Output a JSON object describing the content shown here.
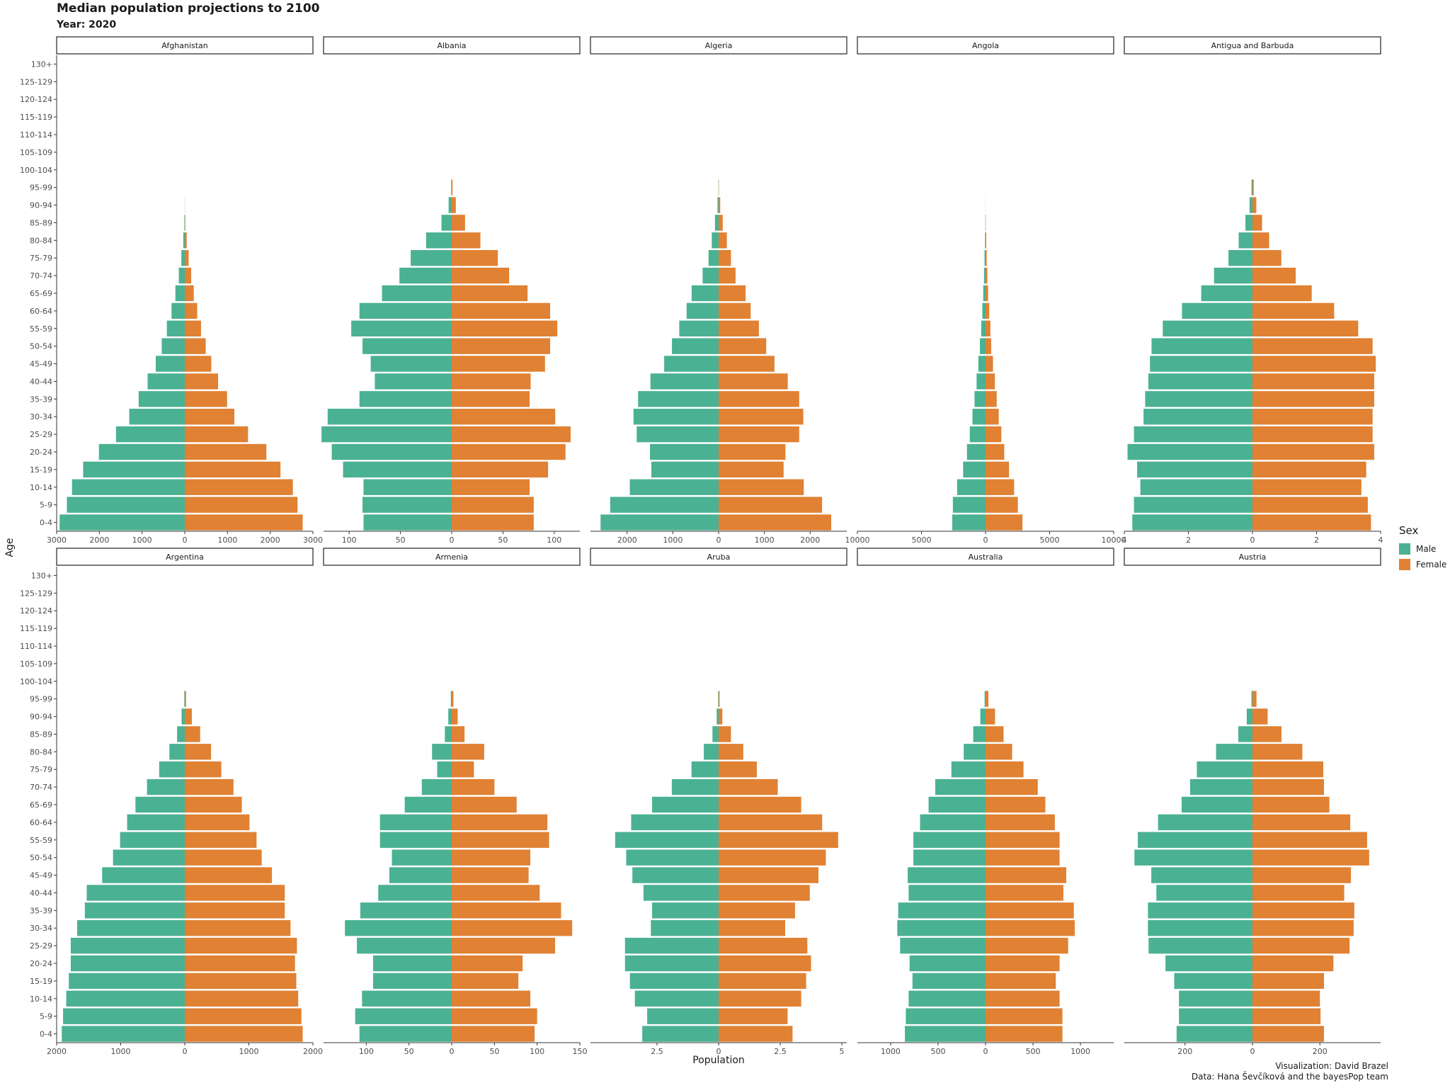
{
  "title": "Median population projections to 2100",
  "subtitle": "Year: 2020",
  "caption": {
    "line1": "Visualization: David Brazel",
    "line2": "Data: Hana Ševčíková and the bayesPop team"
  },
  "legend": {
    "title": "Sex",
    "items": [
      {
        "label": "Male",
        "color": "#4bb193"
      },
      {
        "label": "Female",
        "color": "#e08133"
      }
    ]
  },
  "chart_data": {
    "type": "bar",
    "orientation": "horizontal",
    "style": "population pyramid, facets by country, shared y axis",
    "xlabel": "Population",
    "ylabel": "Age",
    "grid": false,
    "legend_position": "right",
    "age_groups": [
      "0-4",
      "5-9",
      "10-14",
      "15-19",
      "20-24",
      "25-29",
      "30-34",
      "35-39",
      "40-44",
      "45-49",
      "50-54",
      "55-59",
      "60-64",
      "65-69",
      "70-74",
      "75-79",
      "80-84",
      "85-89",
      "90-94",
      "95-99",
      "100-104",
      "105-109",
      "110-114",
      "115-119",
      "120-124",
      "125-129",
      "130+"
    ],
    "panels": [
      {
        "country": "Afghanistan",
        "xlim": [
          -3000,
          3000
        ],
        "ticks": [
          -3000,
          -2000,
          -1000,
          0,
          1000,
          2000,
          3000
        ],
        "tick_labels": [
          "3000",
          "2000",
          "1000",
          "0",
          "1000",
          "2000",
          "3000"
        ],
        "male": [
          2930,
          2760,
          2640,
          2380,
          2010,
          1610,
          1300,
          1080,
          870,
          680,
          540,
          420,
          310,
          220,
          140,
          80,
          35,
          10,
          2,
          0,
          0,
          0,
          0,
          0,
          0,
          0,
          0
        ],
        "female": [
          2760,
          2640,
          2530,
          2240,
          1910,
          1480,
          1160,
          990,
          780,
          620,
          490,
          380,
          290,
          210,
          150,
          90,
          45,
          12,
          2,
          0,
          0,
          0,
          0,
          0,
          0,
          0,
          0
        ]
      },
      {
        "country": "Albania",
        "xlim": [
          -125,
          125
        ],
        "ticks": [
          -100,
          -50,
          0,
          50,
          100
        ],
        "tick_labels": [
          "100",
          "50",
          "0",
          "50",
          "100"
        ],
        "male": [
          86,
          87,
          86,
          106,
          117,
          127,
          121,
          90,
          75,
          79,
          87,
          98,
          90,
          68,
          51,
          40,
          25,
          10,
          3,
          0.5,
          0,
          0,
          0,
          0,
          0,
          0,
          0
        ],
        "female": [
          80,
          80,
          76,
          94,
          111,
          116,
          101,
          76,
          77,
          91,
          96,
          103,
          96,
          74,
          56,
          45,
          28,
          13,
          4,
          0.8,
          0,
          0,
          0,
          0,
          0,
          0,
          0
        ],
        "tick_extra": [
          "100"
        ]
      },
      {
        "country": "Algeria",
        "xlim": [
          -2800,
          2800
        ],
        "ticks": [
          -2000,
          -1000,
          0,
          1000,
          2000
        ],
        "tick_labels": [
          "2000",
          "1000",
          "0",
          "1000",
          "2000"
        ],
        "male": [
          2580,
          2370,
          1940,
          1470,
          1500,
          1790,
          1860,
          1760,
          1490,
          1190,
          1020,
          860,
          700,
          590,
          350,
          220,
          150,
          80,
          25,
          4,
          0,
          0,
          0,
          0,
          0,
          0,
          0
        ],
        "female": [
          2460,
          2260,
          1860,
          1420,
          1460,
          1760,
          1850,
          1760,
          1510,
          1220,
          1040,
          880,
          700,
          590,
          370,
          270,
          180,
          90,
          35,
          6,
          0,
          0,
          0,
          0,
          0,
          0,
          0
        ]
      },
      {
        "country": "Angola",
        "xlim": [
          -10000,
          10000
        ],
        "ticks": [
          -10000,
          -5000,
          0,
          5000,
          10000
        ],
        "tick_labels": [
          "10000",
          "5000",
          "0",
          "5000",
          "10000"
        ],
        "male": [
          2600,
          2550,
          2220,
          1750,
          1450,
          1230,
          1020,
          860,
          700,
          560,
          440,
          340,
          250,
          180,
          120,
          80,
          40,
          15,
          3,
          0.5,
          0,
          0,
          0,
          0,
          0,
          0,
          0
        ],
        "female": [
          2880,
          2520,
          2230,
          1830,
          1460,
          1230,
          1030,
          870,
          730,
          580,
          440,
          380,
          290,
          200,
          140,
          90,
          55,
          20,
          5,
          1,
          0,
          0,
          0,
          0,
          0,
          0,
          0
        ]
      },
      {
        "country": "Antigua and Barbuda",
        "xlim": [
          -4,
          4
        ],
        "ticks": [
          -4,
          -2,
          0,
          2,
          4
        ],
        "tick_labels": [
          "4",
          "2",
          "0",
          "2",
          "4"
        ],
        "male": [
          3.75,
          3.7,
          3.5,
          3.6,
          3.9,
          3.7,
          3.4,
          3.35,
          3.25,
          3.2,
          3.15,
          2.8,
          2.2,
          1.6,
          1.2,
          0.75,
          0.43,
          0.22,
          0.09,
          0.03,
          0,
          0,
          0,
          0,
          0,
          0,
          0
        ],
        "female": [
          3.7,
          3.6,
          3.4,
          3.55,
          3.8,
          3.75,
          3.75,
          3.8,
          3.8,
          3.85,
          3.75,
          3.3,
          2.55,
          1.85,
          1.35,
          0.9,
          0.52,
          0.3,
          0.12,
          0.04,
          0,
          0,
          0,
          0,
          0,
          0,
          0
        ]
      },
      {
        "country": "Argentina",
        "xlim": [
          -2000,
          2000
        ],
        "ticks": [
          -2000,
          -1000,
          0,
          1000,
          2000
        ],
        "tick_labels": [
          "2000",
          "1000",
          "0",
          "1000",
          "2000"
        ],
        "male": [
          1920,
          1900,
          1850,
          1810,
          1780,
          1780,
          1680,
          1560,
          1530,
          1290,
          1120,
          1010,
          900,
          770,
          590,
          400,
          240,
          120,
          50,
          8,
          0,
          0,
          0,
          0,
          0,
          0,
          0
        ],
        "female": [
          1840,
          1820,
          1770,
          1740,
          1720,
          1750,
          1650,
          1560,
          1560,
          1360,
          1200,
          1120,
          1010,
          890,
          760,
          570,
          410,
          240,
          110,
          20,
          0,
          0,
          0,
          0,
          0,
          0,
          0
        ],
        "tick_extra": [
          "2000"
        ]
      },
      {
        "country": "Armenia",
        "xlim": [
          -150,
          150
        ],
        "ticks": [
          -100,
          -50,
          0,
          50,
          100,
          150
        ],
        "tick_labels": [
          "100",
          "50",
          "0",
          "50",
          "100",
          "150"
        ],
        "male": [
          108,
          113,
          105,
          92,
          92,
          111,
          125,
          107,
          86,
          73,
          70,
          84,
          84,
          55,
          35,
          17,
          23,
          8,
          4,
          1,
          0,
          0,
          0,
          0,
          0,
          0,
          0
        ],
        "female": [
          97,
          100,
          92,
          78,
          83,
          121,
          141,
          128,
          103,
          90,
          92,
          114,
          112,
          76,
          50,
          26,
          38,
          15,
          7,
          2,
          0,
          0,
          0,
          0,
          0,
          0,
          0
        ]
      },
      {
        "country": "Aruba",
        "xlim": [
          -5.2,
          5.2
        ],
        "ticks": [
          -2.5,
          0,
          2.5,
          5
        ],
        "tick_labels": [
          "2.5",
          "0",
          "2.5",
          "5"
        ],
        "male": [
          3.1,
          2.9,
          3.4,
          3.6,
          3.8,
          3.8,
          2.75,
          2.7,
          3.05,
          3.5,
          3.75,
          4.2,
          3.55,
          2.7,
          1.9,
          1.1,
          0.6,
          0.25,
          0.08,
          0.02,
          0,
          0,
          0,
          0,
          0,
          0,
          0
        ],
        "female": [
          3.0,
          2.8,
          3.35,
          3.55,
          3.75,
          3.6,
          2.7,
          3.1,
          3.7,
          4.05,
          4.35,
          4.85,
          4.2,
          3.35,
          2.4,
          1.55,
          1.0,
          0.5,
          0.15,
          0.04,
          0,
          0,
          0,
          0,
          0,
          0,
          0
        ]
      },
      {
        "country": "Australia",
        "xlim": [
          -1350,
          1350
        ],
        "ticks": [
          -1000,
          -500,
          0,
          500,
          1000
        ],
        "tick_labels": [
          "1000",
          "500",
          "0",
          "500",
          "1000"
        ],
        "male": [
          850,
          840,
          810,
          770,
          800,
          900,
          930,
          920,
          810,
          820,
          760,
          760,
          690,
          600,
          530,
          360,
          230,
          130,
          55,
          10,
          0,
          0,
          0,
          0,
          0,
          0,
          0
        ],
        "female": [
          810,
          810,
          780,
          740,
          780,
          870,
          940,
          930,
          820,
          850,
          780,
          780,
          730,
          630,
          550,
          400,
          280,
          190,
          100,
          30,
          0,
          0,
          0,
          0,
          0,
          0,
          0
        ]
      },
      {
        "country": "Austria",
        "xlim": [
          -380,
          380
        ],
        "ticks": [
          -200,
          0,
          200
        ],
        "tick_labels": [
          "200",
          "0",
          "200"
        ],
        "male": [
          225,
          218,
          218,
          232,
          258,
          308,
          310,
          310,
          285,
          300,
          350,
          340,
          280,
          210,
          185,
          165,
          108,
          42,
          17,
          3,
          0,
          0,
          0,
          0,
          0,
          0,
          0
        ],
        "female": [
          212,
          202,
          200,
          212,
          240,
          288,
          300,
          302,
          272,
          292,
          346,
          340,
          290,
          228,
          212,
          210,
          148,
          86,
          45,
          12,
          0,
          0,
          0,
          0,
          0,
          0,
          0
        ]
      }
    ]
  }
}
